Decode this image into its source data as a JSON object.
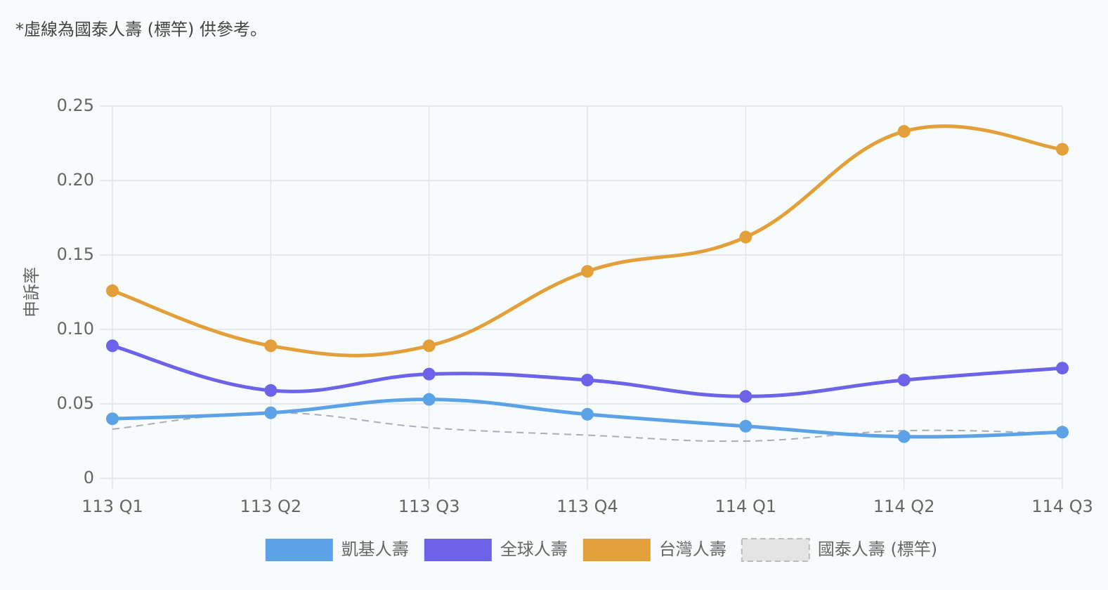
{
  "note": "*虛線為國泰人壽 (標竿) 供參考。",
  "chart_data": {
    "type": "line",
    "y_label": "申訴率",
    "categories": [
      "113 Q1",
      "113 Q2",
      "113 Q3",
      "113 Q4",
      "114 Q1",
      "114 Q2",
      "114 Q3"
    ],
    "series": [
      {
        "name": "凱基人壽",
        "color": "#5ba3e6",
        "values": [
          0.04,
          0.044,
          0.053,
          0.043,
          0.035,
          0.028,
          0.031
        ]
      },
      {
        "name": "全球人壽",
        "color": "#6c63e8",
        "values": [
          0.089,
          0.059,
          0.07,
          0.066,
          0.055,
          0.066,
          0.074
        ]
      },
      {
        "name": "台灣人壽",
        "color": "#e3a03a",
        "values": [
          0.126,
          0.089,
          0.089,
          0.139,
          0.162,
          0.233,
          0.221
        ]
      },
      {
        "name": "國泰人壽 (標竿)",
        "color": "#a9adb8",
        "dashed": true,
        "values": [
          0.033,
          0.044,
          0.034,
          0.029,
          0.025,
          0.032,
          0.03
        ]
      }
    ],
    "ylim": [
      0,
      0.25
    ],
    "yticks": [
      0,
      0.05,
      {
        "value": 0.1,
        "label": "0.10"
      },
      0.15,
      {
        "value": 0.2,
        "label": "0.20"
      },
      0.25
    ],
    "grid": true,
    "legend": "bottom"
  }
}
